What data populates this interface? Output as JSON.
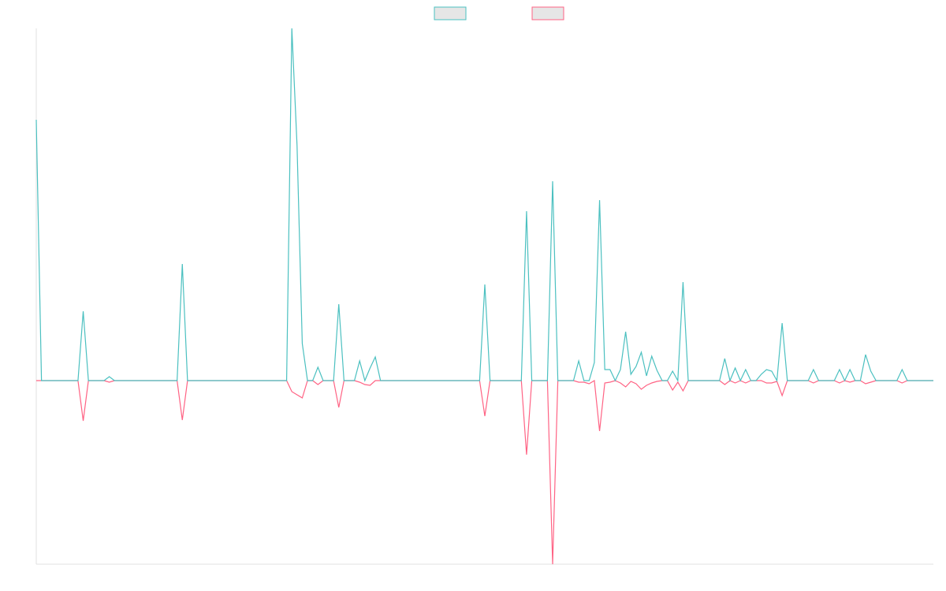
{
  "chart_data": {
    "type": "line",
    "legend": "top",
    "ylim": [
      -233,
      447
    ],
    "series": [
      {
        "color": "#4bc0c0",
        "values": [
          331,
          0,
          0,
          0,
          0,
          0,
          0,
          0,
          0,
          88,
          0,
          0,
          0,
          0,
          5,
          0,
          0,
          0,
          0,
          0,
          0,
          0,
          0,
          0,
          0,
          0,
          0,
          0,
          148,
          0,
          0,
          0,
          0,
          0,
          0,
          0,
          0,
          0,
          0,
          0,
          0,
          0,
          0,
          0,
          0,
          0,
          0,
          0,
          0,
          447,
          298,
          47,
          0,
          0,
          17,
          0,
          0,
          0,
          97,
          0,
          0,
          0,
          25,
          0,
          16,
          30,
          0,
          0,
          0,
          0,
          0,
          0,
          0,
          0,
          0,
          0,
          0,
          0,
          0,
          0,
          0,
          0,
          0,
          0,
          0,
          0,
          122,
          0,
          0,
          0,
          0,
          0,
          0,
          0,
          215,
          0,
          0,
          0,
          0,
          253,
          0,
          0,
          0,
          0,
          25,
          0,
          0,
          23,
          229,
          14,
          14,
          0,
          14,
          62,
          8,
          18,
          36,
          6,
          31,
          13,
          0,
          0,
          12,
          0,
          125,
          0,
          0,
          0,
          0,
          0,
          0,
          0,
          28,
          0,
          16,
          0,
          14,
          0,
          0,
          8,
          14,
          12,
          0,
          73,
          0,
          0,
          0,
          0,
          0,
          14,
          0,
          0,
          0,
          0,
          14,
          0,
          14,
          0,
          0,
          33,
          12,
          0,
          0,
          0,
          0,
          0,
          14,
          0,
          0,
          0,
          0,
          0,
          0
        ]
      },
      {
        "color": "#ff6384",
        "values": [
          0,
          0,
          0,
          0,
          0,
          0,
          0,
          0,
          0,
          -51,
          0,
          0,
          0,
          0,
          -2,
          0,
          0,
          0,
          0,
          0,
          0,
          0,
          0,
          0,
          0,
          0,
          0,
          0,
          -50,
          0,
          0,
          0,
          0,
          0,
          0,
          0,
          0,
          0,
          0,
          0,
          0,
          0,
          0,
          0,
          0,
          0,
          0,
          0,
          0,
          -14,
          -18,
          -22,
          0,
          0,
          -5,
          0,
          0,
          0,
          -34,
          0,
          0,
          0,
          -2,
          -5,
          -6,
          0,
          0,
          0,
          0,
          0,
          0,
          0,
          0,
          0,
          0,
          0,
          0,
          0,
          0,
          0,
          0,
          0,
          0,
          0,
          0,
          0,
          -45,
          0,
          0,
          0,
          0,
          0,
          0,
          0,
          -94,
          0,
          0,
          0,
          0,
          -233,
          0,
          0,
          0,
          0,
          -2,
          -2,
          -4,
          0,
          -64,
          -3,
          -2,
          0,
          -3,
          -8,
          -1,
          -4,
          -11,
          -6,
          -3,
          -1,
          0,
          0,
          -12,
          -2,
          -13,
          0,
          0,
          0,
          0,
          0,
          0,
          0,
          -5,
          0,
          -3,
          0,
          -3,
          0,
          0,
          0,
          -3,
          -3,
          -1,
          -19,
          0,
          0,
          0,
          0,
          0,
          -3,
          0,
          0,
          0,
          0,
          -3,
          0,
          -2,
          0,
          0,
          -4,
          -2,
          0,
          0,
          0,
          0,
          0,
          -3,
          0,
          0,
          0,
          0,
          0,
          0
        ]
      }
    ]
  }
}
